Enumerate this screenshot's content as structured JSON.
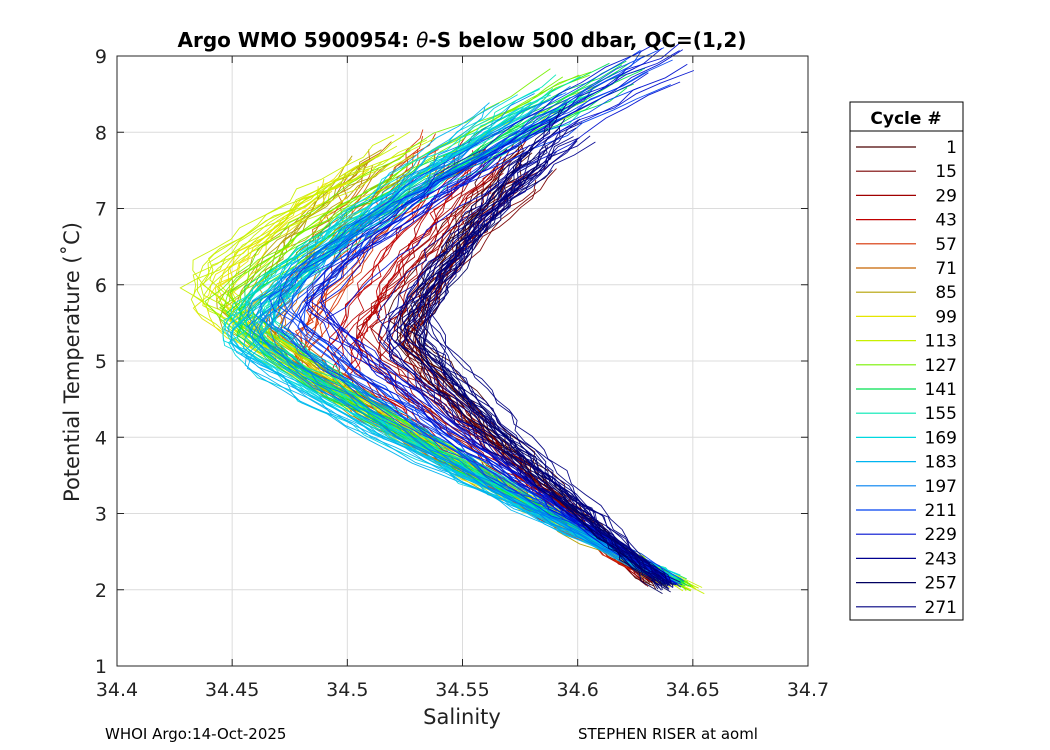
{
  "chart_data": {
    "type": "line",
    "title": "Argo WMO 5900954: θ-S below 500 dbar,  QC=(1,2)",
    "title_prefix": "Argo WMO 5900954: ",
    "title_theta": "θ",
    "title_suffix": "-S below 500 dbar,  QC=(1,2)",
    "xlabel": "Salinity",
    "ylabel": "Potential Temperature (˚C)",
    "xlim": [
      34.4,
      34.7
    ],
    "ylim": [
      1,
      9
    ],
    "xticks": [
      34.4,
      34.45,
      34.5,
      34.55,
      34.6,
      34.65,
      34.7
    ],
    "xtick_labels": [
      "34.4",
      "34.45",
      "34.5",
      "34.55",
      "34.6",
      "34.65",
      "34.7"
    ],
    "yticks": [
      1,
      2,
      3,
      4,
      5,
      6,
      7,
      8,
      9
    ],
    "ytick_labels": [
      "1",
      "2",
      "3",
      "4",
      "5",
      "6",
      "7",
      "8",
      "9"
    ],
    "grid": true,
    "legend_title": "Cycle #",
    "legend_position": "right",
    "series": [
      {
        "name": "1",
        "color": "#4a0000",
        "s_min": 34.525,
        "t_min": 5.4,
        "s_top": 34.575,
        "t_top": 7.6,
        "s_bot": 34.635,
        "t_bot": 2.05
      },
      {
        "name": "15",
        "color": "#7a0000",
        "s_min": 34.523,
        "t_min": 5.3,
        "s_top": 34.58,
        "t_top": 7.5,
        "s_bot": 34.633,
        "t_bot": 2.1
      },
      {
        "name": "29",
        "color": "#a00000",
        "s_min": 34.51,
        "t_min": 5.2,
        "s_top": 34.57,
        "t_top": 7.7,
        "s_bot": 34.63,
        "t_bot": 2.15
      },
      {
        "name": "43",
        "color": "#c00000",
        "s_min": 34.495,
        "t_min": 5.0,
        "s_top": 34.56,
        "t_top": 7.8,
        "s_bot": 34.63,
        "t_bot": 2.2
      },
      {
        "name": "57",
        "color": "#d63000",
        "s_min": 34.48,
        "t_min": 5.1,
        "s_top": 34.54,
        "t_top": 7.8,
        "s_bot": 34.635,
        "t_bot": 2.2
      },
      {
        "name": "71",
        "color": "#c86400",
        "s_min": 34.465,
        "t_min": 5.3,
        "s_top": 34.52,
        "t_top": 7.6,
        "s_bot": 34.64,
        "t_bot": 2.1
      },
      {
        "name": "85",
        "color": "#b4a000",
        "s_min": 34.45,
        "t_min": 5.6,
        "s_top": 34.51,
        "t_top": 7.5,
        "s_bot": 34.64,
        "t_bot": 2.1
      },
      {
        "name": "99",
        "color": "#e6e600",
        "s_min": 34.44,
        "t_min": 5.8,
        "s_top": 34.5,
        "t_top": 7.4,
        "s_bot": 34.645,
        "t_bot": 2.05
      },
      {
        "name": "113",
        "color": "#c8f000",
        "s_min": 34.435,
        "t_min": 6.0,
        "s_top": 34.53,
        "t_top": 7.8,
        "s_bot": 34.65,
        "t_bot": 2.0
      },
      {
        "name": "127",
        "color": "#78f000",
        "s_min": 34.445,
        "t_min": 5.7,
        "s_top": 34.6,
        "t_top": 8.6,
        "s_bot": 34.648,
        "t_bot": 2.05
      },
      {
        "name": "141",
        "color": "#00e050",
        "s_min": 34.455,
        "t_min": 5.5,
        "s_top": 34.62,
        "t_top": 8.8,
        "s_bot": 34.645,
        "t_bot": 2.1
      },
      {
        "name": "155",
        "color": "#00e8b4",
        "s_min": 34.46,
        "t_min": 5.4,
        "s_top": 34.6,
        "t_top": 8.5,
        "s_bot": 34.643,
        "t_bot": 2.1
      },
      {
        "name": "169",
        "color": "#00d8e0",
        "s_min": 34.447,
        "t_min": 5.3,
        "s_top": 34.58,
        "t_top": 8.3,
        "s_bot": 34.642,
        "t_bot": 2.15
      },
      {
        "name": "183",
        "color": "#00b4f0",
        "s_min": 34.452,
        "t_min": 5.2,
        "s_top": 34.57,
        "t_top": 8.1,
        "s_bot": 34.64,
        "t_bot": 2.15
      },
      {
        "name": "197",
        "color": "#0080f0",
        "s_min": 34.462,
        "t_min": 5.5,
        "s_top": 34.59,
        "t_top": 8.4,
        "s_bot": 34.64,
        "t_bot": 2.1
      },
      {
        "name": "211",
        "color": "#0040f0",
        "s_min": 34.472,
        "t_min": 5.6,
        "s_top": 34.63,
        "t_top": 8.9,
        "s_bot": 34.642,
        "t_bot": 2.1
      },
      {
        "name": "229",
        "color": "#0010d0",
        "s_min": 34.485,
        "t_min": 5.7,
        "s_top": 34.64,
        "t_top": 8.95,
        "s_bot": 34.64,
        "t_bot": 2.1
      },
      {
        "name": "243",
        "color": "#000090",
        "s_min": 34.52,
        "t_min": 5.3,
        "s_top": 34.6,
        "t_top": 8.1,
        "s_bot": 34.64,
        "t_bot": 2.05
      },
      {
        "name": "257",
        "color": "#000060",
        "s_min": 34.527,
        "t_min": 5.4,
        "s_top": 34.585,
        "t_top": 7.8,
        "s_bot": 34.638,
        "t_bot": 2.0
      },
      {
        "name": "271",
        "color": "#000080",
        "s_min": 34.53,
        "t_min": 5.5,
        "s_top": 34.59,
        "t_top": 8.0,
        "s_bot": 34.64,
        "t_bot": 2.05
      }
    ]
  },
  "footer": {
    "left": "WHOI Argo:14-Oct-2025",
    "right": "STEPHEN RISER at aoml"
  }
}
